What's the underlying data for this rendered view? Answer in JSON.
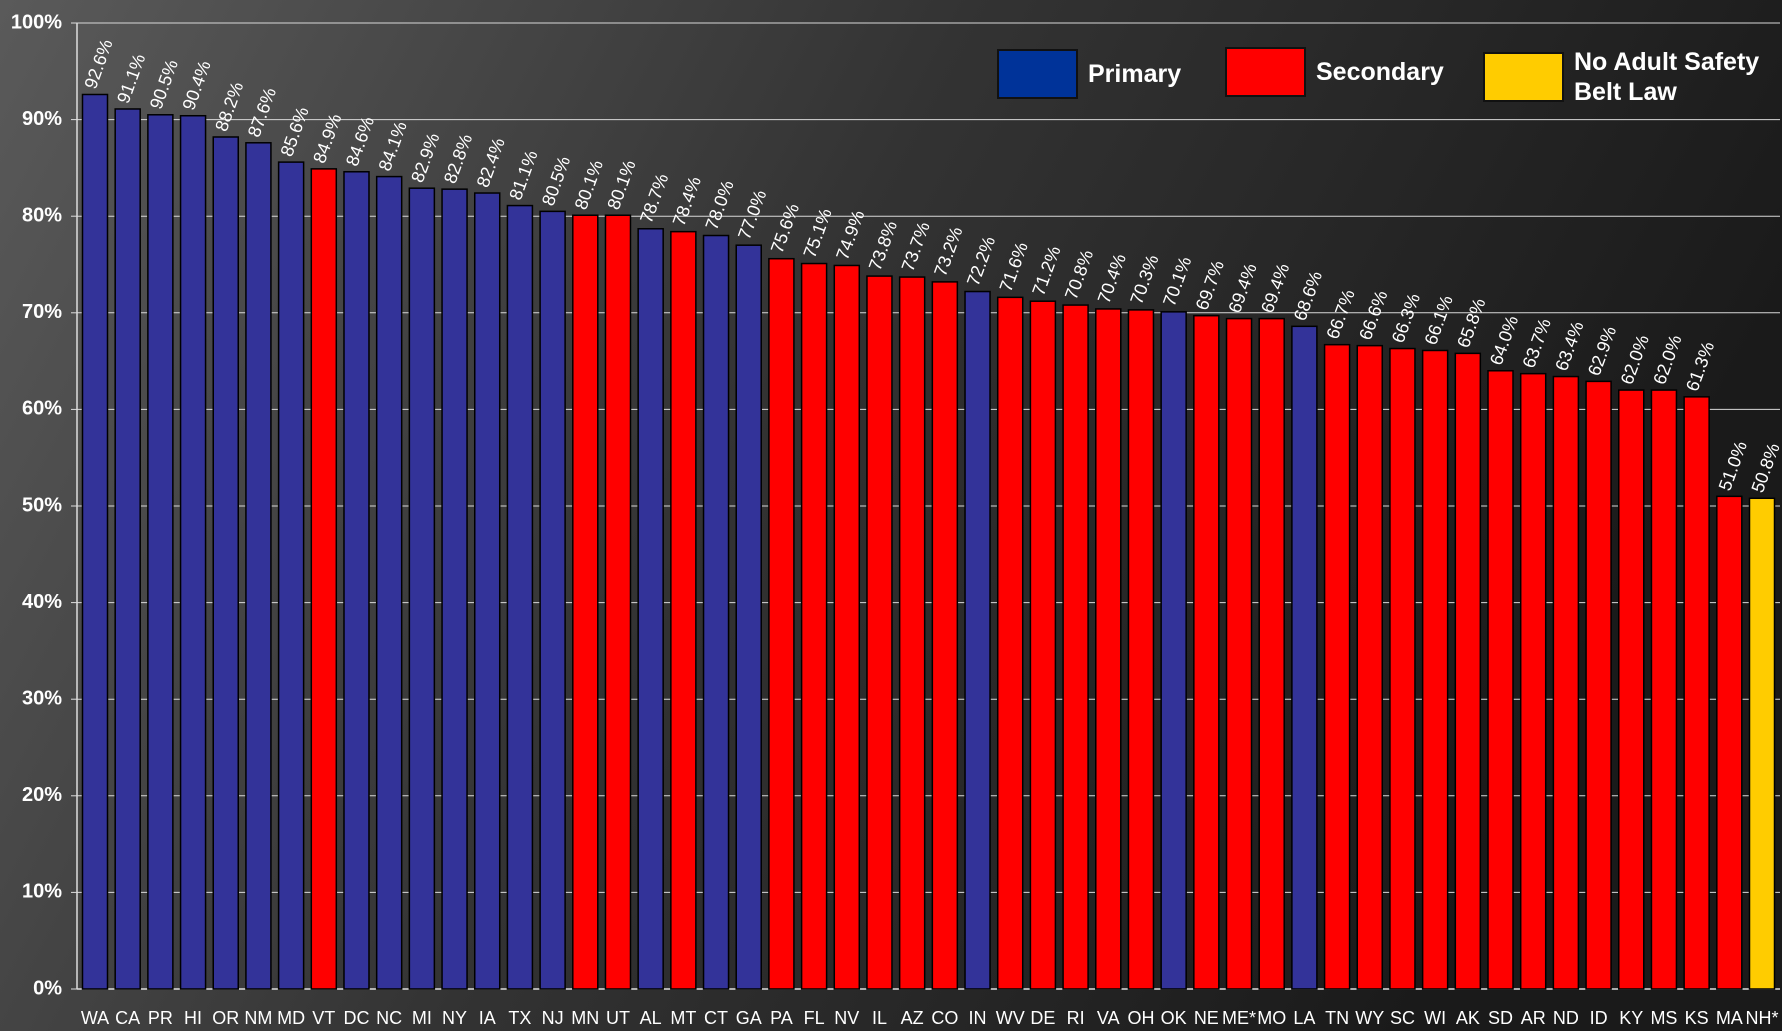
{
  "chart_data": {
    "type": "bar",
    "categories": [
      "WA",
      "CA",
      "PR",
      "HI",
      "OR",
      "NM",
      "MD",
      "VT",
      "DC",
      "NC",
      "MI",
      "NY",
      "IA",
      "TX",
      "NJ",
      "MN",
      "UT",
      "AL",
      "MT",
      "CT",
      "GA",
      "PA",
      "FL",
      "NV",
      "IL",
      "AZ",
      "CO",
      "IN",
      "WV",
      "DE",
      "RI",
      "VA",
      "OH",
      "OK",
      "NE",
      "ME*",
      "MO",
      "LA",
      "TN",
      "WY",
      "SC",
      "WI",
      "AK",
      "SD",
      "AR",
      "ND",
      "ID",
      "KY",
      "MS",
      "KS",
      "MA",
      "NH*"
    ],
    "values": [
      92.6,
      91.1,
      90.5,
      90.4,
      88.2,
      87.6,
      85.6,
      84.9,
      84.6,
      84.1,
      82.9,
      82.8,
      82.4,
      81.1,
      80.5,
      80.1,
      80.1,
      78.7,
      78.4,
      78.0,
      77.0,
      75.6,
      75.1,
      74.9,
      73.8,
      73.7,
      73.2,
      72.2,
      71.6,
      71.2,
      70.8,
      70.4,
      70.3,
      70.1,
      69.7,
      69.4,
      69.4,
      68.6,
      66.7,
      66.6,
      66.3,
      66.1,
      65.8,
      64.0,
      63.7,
      63.4,
      62.9,
      62.0,
      62.0,
      61.3,
      51.0,
      50.8
    ],
    "value_labels": [
      "92.6%",
      "91.1%",
      "90.5%",
      "90.4%",
      "88.2%",
      "87.6%",
      "85.6%",
      "84.9%",
      "84.6%",
      "84.1%",
      "82.9%",
      "82.8%",
      "82.4%",
      "81.1%",
      "80.5%",
      "80.1%",
      "80.1%",
      "78.7%",
      "78.4%",
      "78.0%",
      "77.0%",
      "75.6%",
      "75.1%",
      "74.9%",
      "73.8%",
      "73.7%",
      "73.2%",
      "72.2%",
      "71.6%",
      "71.2%",
      "70.8%",
      "70.4%",
      "70.3%",
      "70.1%",
      "69.7%",
      "69.4%",
      "69.4%",
      "68.6%",
      "66.7%",
      "66.6%",
      "66.3%",
      "66.1%",
      "65.8%",
      "64.0%",
      "63.7%",
      "63.4%",
      "62.9%",
      "62.0%",
      "62.0%",
      "61.3%",
      "51.0%",
      "50.8%"
    ],
    "colors": [
      "#333399",
      "#333399",
      "#333399",
      "#333399",
      "#333399",
      "#333399",
      "#333399",
      "#ff0000",
      "#333399",
      "#333399",
      "#333399",
      "#333399",
      "#333399",
      "#333399",
      "#333399",
      "#ff0000",
      "#ff0000",
      "#333399",
      "#ff0000",
      "#333399",
      "#333399",
      "#ff0000",
      "#ff0000",
      "#ff0000",
      "#ff0000",
      "#ff0000",
      "#ff0000",
      "#333399",
      "#ff0000",
      "#ff0000",
      "#ff0000",
      "#ff0000",
      "#ff0000",
      "#333399",
      "#ff0000",
      "#ff0000",
      "#ff0000",
      "#333399",
      "#ff0000",
      "#ff0000",
      "#ff0000",
      "#ff0000",
      "#ff0000",
      "#ff0000",
      "#ff0000",
      "#ff0000",
      "#ff0000",
      "#ff0000",
      "#ff0000",
      "#ff0000",
      "#ff0000",
      "#ffcc00"
    ],
    "legend": [
      {
        "name": "Primary",
        "color": "#003399"
      },
      {
        "name": "Secondary",
        "color": "#ff0000"
      },
      {
        "name": "No Adult Safety Belt Law",
        "color": "#ffcc00"
      }
    ],
    "ylim": [
      0,
      100
    ],
    "yticks": [
      {
        "value": 0,
        "label": "0%"
      },
      {
        "value": 10,
        "label": "10%"
      },
      {
        "value": 20,
        "label": "20%"
      },
      {
        "value": 30,
        "label": "30%"
      },
      {
        "value": 40,
        "label": "40%"
      },
      {
        "value": 50,
        "label": "50%"
      },
      {
        "value": 60,
        "label": "60%"
      },
      {
        "value": 70,
        "label": "70%"
      },
      {
        "value": 80,
        "label": "80%"
      },
      {
        "value": 90,
        "label": "90%"
      },
      {
        "value": 100,
        "label": "100%"
      }
    ],
    "grid": true
  }
}
